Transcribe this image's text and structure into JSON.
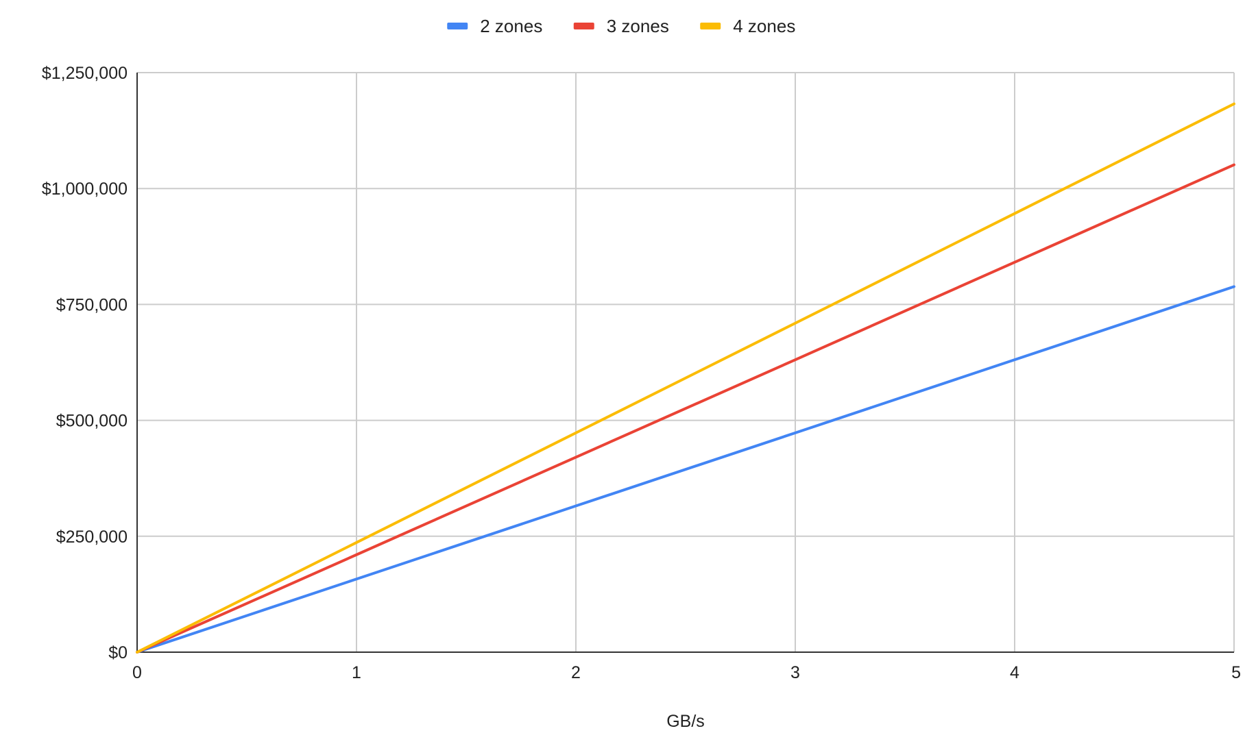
{
  "chart_data": {
    "type": "line",
    "title": "",
    "xlabel": "GB/s",
    "ylabel": "",
    "x": [
      0,
      1,
      2,
      3,
      4,
      5
    ],
    "xlim": [
      0,
      5
    ],
    "ylim": [
      0,
      1250000
    ],
    "x_ticks": [
      {
        "value": 0,
        "label": "0"
      },
      {
        "value": 1,
        "label": "1"
      },
      {
        "value": 2,
        "label": "2"
      },
      {
        "value": 3,
        "label": "3"
      },
      {
        "value": 4,
        "label": "4"
      },
      {
        "value": 5,
        "label": "5"
      }
    ],
    "y_ticks": [
      {
        "value": 0,
        "label": "$0"
      },
      {
        "value": 250000,
        "label": "$250,000"
      },
      {
        "value": 500000,
        "label": "$500,000"
      },
      {
        "value": 750000,
        "label": "$750,000"
      },
      {
        "value": 1000000,
        "label": "$1,000,000"
      },
      {
        "value": 1250000,
        "label": "$1,250,000"
      }
    ],
    "grid": true,
    "legend_position": "top-center",
    "series": [
      {
        "name": "2 zones",
        "color": "#4285F4",
        "values": [
          0,
          157700,
          315400,
          473000,
          630700,
          788400
        ]
      },
      {
        "name": "3 zones",
        "color": "#EA4335",
        "values": [
          0,
          210200,
          420500,
          630700,
          841000,
          1051200
        ]
      },
      {
        "name": "4 zones",
        "color": "#FBBC04",
        "values": [
          0,
          236500,
          473000,
          709600,
          946100,
          1182600
        ]
      }
    ]
  }
}
